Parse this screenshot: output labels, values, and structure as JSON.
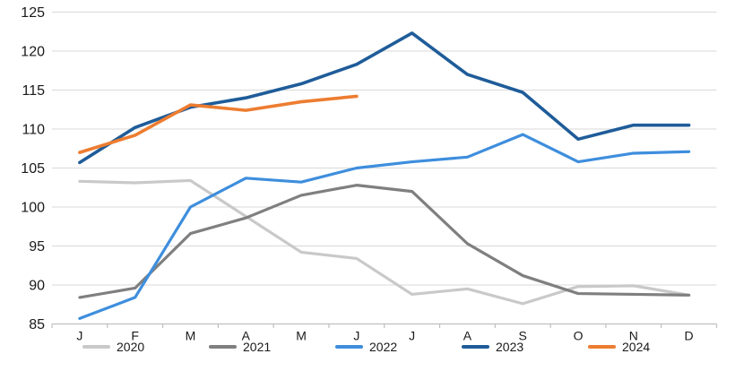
{
  "chart_data": {
    "type": "line",
    "title": "",
    "xlabel": "",
    "ylabel": "",
    "x": [
      "J",
      "F",
      "M",
      "A",
      "M",
      "J",
      "J",
      "A",
      "S",
      "O",
      "N",
      "D"
    ],
    "series": [
      {
        "name": "2020",
        "color": "#C9C9C9",
        "values": [
          103.3,
          103.1,
          103.4,
          98.8,
          94.2,
          93.4,
          88.8,
          89.5,
          87.6,
          89.8,
          89.9,
          88.7
        ]
      },
      {
        "name": "2021",
        "color": "#7F7F7F",
        "values": [
          88.4,
          89.6,
          96.6,
          98.6,
          101.5,
          102.8,
          102.0,
          95.3,
          91.2,
          88.9,
          88.8,
          88.7
        ]
      },
      {
        "name": "2022",
        "color": "#3E8EDD",
        "values": [
          85.7,
          88.4,
          100.0,
          103.7,
          103.2,
          105.0,
          105.8,
          106.4,
          109.3,
          105.8,
          106.9,
          107.1
        ]
      },
      {
        "name": "2023",
        "color": "#1F5C99",
        "values": [
          105.7,
          110.2,
          112.8,
          114.0,
          115.8,
          118.3,
          122.3,
          117.0,
          114.7,
          108.7,
          110.5,
          110.5
        ]
      },
      {
        "name": "2024",
        "color": "#ED7D31",
        "values": [
          107.0,
          109.2,
          113.1,
          112.4,
          113.5,
          114.2
        ]
      }
    ],
    "ylim": [
      85,
      125
    ],
    "y_ticks": [
      85,
      90,
      95,
      100,
      105,
      110,
      115,
      120,
      125
    ],
    "grid": true,
    "legend_position": "bottom",
    "legend_labels": [
      "2020",
      "2021",
      "2022",
      "2023",
      "2024"
    ]
  },
  "colors": {
    "gridline": "#D9D9D9",
    "axis": "#BFBFBF",
    "text": "#1a1a1a",
    "background": "#FFFFFF"
  }
}
